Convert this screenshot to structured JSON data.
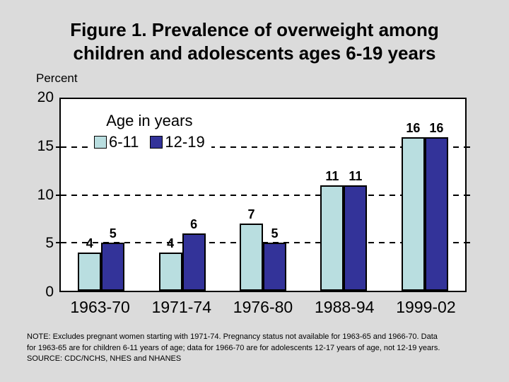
{
  "window": {
    "background": "#dbdbdb",
    "plot_background": "#ffffff"
  },
  "title": {
    "lines": [
      "Figure 1. Prevalence of overweight among",
      "children and adolescents ages 6-19 years"
    ]
  },
  "y_axis": {
    "unit_label": "Percent",
    "ticks": [
      "20",
      "15",
      "10",
      "5",
      "0"
    ]
  },
  "legend": {
    "title": "Age in years",
    "items": [
      {
        "label": "6-11",
        "color": "#b9dee0"
      },
      {
        "label": "12-19",
        "color": "#333399"
      }
    ]
  },
  "chart_data": {
    "type": "bar",
    "title": "Figure 1. Prevalence of overweight among children and adolescents ages 6-19 years",
    "categories": [
      "1963-70",
      "1971-74",
      "1976-80",
      "1988-94",
      "1999-02"
    ],
    "series": [
      {
        "name": "6-11",
        "color": "#b9dee0",
        "values": [
          4,
          4,
          7,
          11,
          16
        ]
      },
      {
        "name": "12-19",
        "color": "#333399",
        "values": [
          5,
          6,
          5,
          11,
          16
        ]
      }
    ],
    "xlabel": "",
    "ylabel": "Percent",
    "ylim": [
      0,
      20
    ],
    "yticks": [
      0,
      5,
      10,
      15,
      20
    ],
    "gridlines": {
      "style": "dashed",
      "at": [
        5,
        10,
        15
      ]
    },
    "legend_title": "Age in years",
    "legend_position": "top-left-inside",
    "bar_value_labels_shown": true
  },
  "footnote": {
    "lines": [
      "NOTE:  Excludes pregnant women starting with 1971-74.  Pregnancy status not available for 1963-65 and 1966-70.  Data",
      "for 1963-65 are for children 6-11 years of age; data for 1966-70 are for adolescents 12-17 years of age, not 12-19 years.",
      "SOURCE: CDC/NCHS, NHES and NHANES"
    ]
  }
}
